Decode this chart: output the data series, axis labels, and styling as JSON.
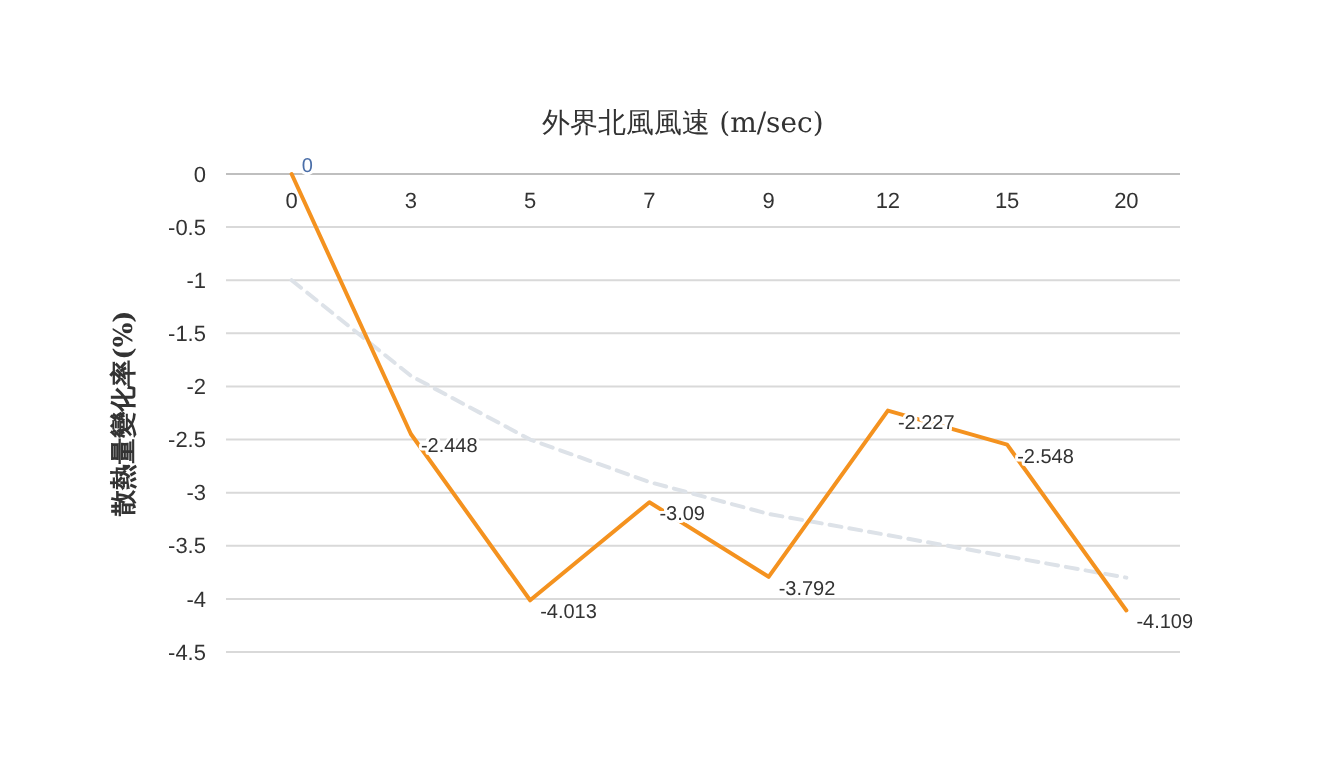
{
  "chart_data": {
    "type": "line",
    "title": "外界北風風速 (m/sec)",
    "ylabel": "散熱量變化率(%)",
    "categories": [
      "0",
      "3",
      "5",
      "7",
      "9",
      "12",
      "15",
      "20"
    ],
    "series": [
      {
        "color": "#dde2e8",
        "line_style": "dashed",
        "values": [
          -1.0,
          -1.9,
          -2.5,
          -2.9,
          -3.2,
          -3.4,
          -3.6,
          -3.8
        ]
      },
      {
        "color": "#f4921f",
        "line_style": "solid",
        "values": [
          0,
          -2.448,
          -4.013,
          -3.09,
          -3.792,
          -2.227,
          -2.548,
          -4.109
        ],
        "value_labels": [
          "0",
          "-2.448",
          "-4.013",
          "-3.09",
          "-3.792",
          "-2.227",
          "-2.548",
          "-4.109"
        ]
      }
    ],
    "ylim": [
      -4.5,
      0
    ],
    "yticks": [
      0,
      -0.5,
      -1,
      -1.5,
      -2,
      -2.5,
      -3,
      -3.5,
      -4,
      -4.5
    ],
    "grid": "y"
  }
}
